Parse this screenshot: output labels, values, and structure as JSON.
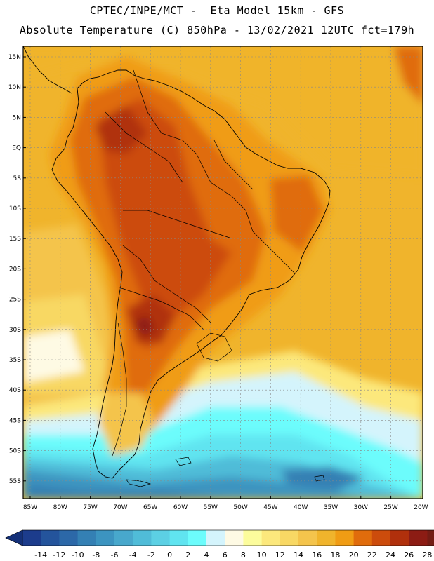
{
  "header": {
    "line1": "CPTEC/INPE/MCT -  Eta Model 15km - GFS",
    "line2": "Absolute Temperature (C) 850hPa - 13/02/2021 12UTC fct=179h"
  },
  "map": {
    "lat_labels": [
      "15N",
      "10N",
      "5N",
      "EQ",
      "5S",
      "10S",
      "15S",
      "20S",
      "25S",
      "30S",
      "35S",
      "40S",
      "45S",
      "50S",
      "55S"
    ],
    "lon_labels": [
      "85W",
      "80W",
      "75W",
      "70W",
      "65W",
      "60W",
      "55W",
      "50W",
      "45W",
      "40W",
      "35W",
      "30W",
      "25W",
      "20W"
    ]
  },
  "colorbar": {
    "ticks": [
      "-14",
      "-12",
      "-10",
      "-8",
      "-6",
      "-4",
      "-2",
      "0",
      "2",
      "4",
      "6",
      "8",
      "10",
      "12",
      "14",
      "16",
      "18",
      "20",
      "22",
      "24",
      "26",
      "28"
    ],
    "colors": [
      "#1c3c8c",
      "#24549c",
      "#2c68a8",
      "#3480b4",
      "#3c94c0",
      "#48a8cc",
      "#50bcd8",
      "#5cd0e4",
      "#60e4f0",
      "#6cfcfc",
      "#d4f4fc",
      "#fefae4",
      "#fcfc9c",
      "#fce87c",
      "#f8d864",
      "#f4c44c",
      "#f0b42c",
      "#f09c14",
      "#e06c0c",
      "#cc4c0c",
      "#b0300c",
      "#8c1c14",
      "#741c14"
    ],
    "arrow_left_color": "#143078",
    "arrow_right_color": "#6c0c2c"
  }
}
